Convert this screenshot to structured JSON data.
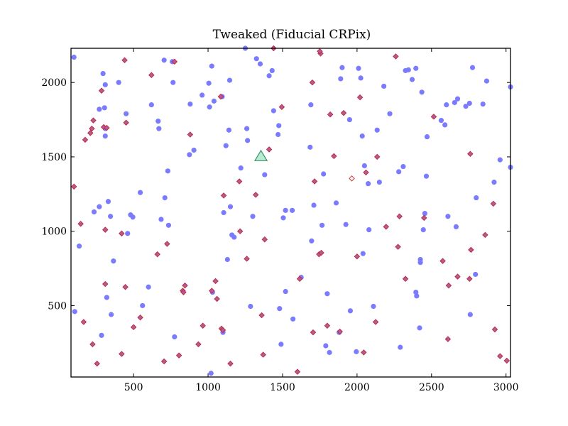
{
  "chart_data": {
    "type": "scatter",
    "title": "Tweaked (Fiducial CRPix)",
    "xlabel": "",
    "ylabel": "",
    "xlim": [
      80,
      3030
    ],
    "ylim": [
      20,
      2230
    ],
    "xticks": [
      500,
      1000,
      1500,
      2000,
      2500,
      3000
    ],
    "yticks": [
      500,
      1000,
      1500,
      2000
    ],
    "grid": false,
    "colors": {
      "circles": "#7b7bff",
      "diamond_fill": "#b35a9e",
      "diamond_edge": "#c0282f",
      "open_diamond_edge": "#d03a3a",
      "triangle_fill": "#b8ecd2",
      "triangle_edge": "#3f8f6a"
    },
    "series": [
      {
        "marker": "circle",
        "points": [
          [
            100,
            2170
          ],
          [
            135,
            900
          ],
          [
            105,
            460
          ],
          [
            235,
            1130
          ],
          [
            270,
            1165
          ],
          [
            285,
            300
          ],
          [
            295,
            2060
          ],
          [
            310,
            1985
          ],
          [
            305,
            1830
          ],
          [
            310,
            1640
          ],
          [
            320,
            555
          ],
          [
            330,
            1200
          ],
          [
            345,
            1100
          ],
          [
            350,
            440
          ],
          [
            365,
            800
          ],
          [
            400,
            2000
          ],
          [
            450,
            1790
          ],
          [
            460,
            985
          ],
          [
            480,
            1110
          ],
          [
            495,
            1095
          ],
          [
            545,
            1260
          ],
          [
            560,
            500
          ],
          [
            600,
            625
          ],
          [
            620,
            1850
          ],
          [
            665,
            1740
          ],
          [
            670,
            1690
          ],
          [
            685,
            1080
          ],
          [
            705,
            2150
          ],
          [
            710,
            1225
          ],
          [
            730,
            1405
          ],
          [
            735,
            1040
          ],
          [
            760,
            2140
          ],
          [
            765,
            2000
          ],
          [
            775,
            290
          ],
          [
            875,
            1515
          ],
          [
            880,
            1855
          ],
          [
            905,
            1545
          ],
          [
            960,
            1915
          ],
          [
            1005,
            1995
          ],
          [
            1010,
            1835
          ],
          [
            1020,
            45
          ],
          [
            1025,
            2110
          ],
          [
            1030,
            590
          ],
          [
            1040,
            1875
          ],
          [
            1095,
            1905
          ],
          [
            1100,
            320
          ],
          [
            1105,
            1125
          ],
          [
            1120,
            1575
          ],
          [
            1130,
            810
          ],
          [
            1140,
            1680
          ],
          [
            1145,
            2015
          ],
          [
            1150,
            1165
          ],
          [
            1160,
            975
          ],
          [
            1175,
            960
          ],
          [
            1220,
            1425
          ],
          [
            1250,
            2230
          ],
          [
            1260,
            1690
          ],
          [
            1265,
            1610
          ],
          [
            1285,
            495
          ],
          [
            1300,
            1100
          ],
          [
            1325,
            2160
          ],
          [
            1350,
            2125
          ],
          [
            1380,
            1380
          ],
          [
            1410,
            2045
          ],
          [
            1430,
            2080
          ],
          [
            1440,
            1810
          ],
          [
            1470,
            1650
          ],
          [
            1475,
            1710
          ],
          [
            1480,
            480
          ],
          [
            1490,
            240
          ],
          [
            1505,
            1090
          ],
          [
            1520,
            1140
          ],
          [
            1520,
            595
          ],
          [
            1565,
            1140
          ],
          [
            1570,
            410
          ],
          [
            1625,
            690
          ],
          [
            1685,
            1565
          ],
          [
            1690,
            1850
          ],
          [
            1695,
            935
          ],
          [
            1710,
            1175
          ],
          [
            1765,
            1040
          ],
          [
            1775,
            1385
          ],
          [
            1790,
            230
          ],
          [
            1800,
            580
          ],
          [
            1815,
            185
          ],
          [
            1860,
            1190
          ],
          [
            1880,
            320
          ],
          [
            1890,
            2025
          ],
          [
            1900,
            2100
          ],
          [
            1925,
            1045
          ],
          [
            1950,
            1750
          ],
          [
            1955,
            465
          ],
          [
            1995,
            190
          ],
          [
            2010,
            2095
          ],
          [
            2025,
            2030
          ],
          [
            2035,
            1640
          ],
          [
            2040,
            850
          ],
          [
            2050,
            1440
          ],
          [
            2075,
            1320
          ],
          [
            2080,
            1010
          ],
          [
            2110,
            495
          ],
          [
            2135,
            1680
          ],
          [
            2150,
            1330
          ],
          [
            2180,
            1975
          ],
          [
            2220,
            1790
          ],
          [
            2280,
            1400
          ],
          [
            2290,
            220
          ],
          [
            2300,
            15
          ],
          [
            2310,
            1435
          ],
          [
            2325,
            2080
          ],
          [
            2345,
            2085
          ],
          [
            2370,
            2020
          ],
          [
            2395,
            2095
          ],
          [
            2395,
            590
          ],
          [
            2400,
            565
          ],
          [
            2420,
            350
          ],
          [
            2425,
            810
          ],
          [
            2425,
            790
          ],
          [
            2435,
            1935
          ],
          [
            2445,
            1010
          ],
          [
            2455,
            1120
          ],
          [
            2465,
            1370
          ],
          [
            2470,
            1635
          ],
          [
            2565,
            1745
          ],
          [
            2590,
            1715
          ],
          [
            2600,
            1850
          ],
          [
            2610,
            1100
          ],
          [
            2655,
            1865
          ],
          [
            2665,
            1030
          ],
          [
            2675,
            1890
          ],
          [
            2730,
            1840
          ],
          [
            2755,
            1860
          ],
          [
            2760,
            440
          ],
          [
            2775,
            2100
          ],
          [
            2795,
            710
          ],
          [
            2800,
            1225
          ],
          [
            2845,
            1855
          ],
          [
            2870,
            2010
          ],
          [
            2920,
            1330
          ],
          [
            2960,
            1480
          ],
          [
            3030,
            1430
          ],
          [
            3030,
            1970
          ],
          [
            310,
            1690
          ],
          [
            1305,
            15
          ],
          [
            270,
            1820
          ]
        ]
      },
      {
        "marker": "diamond",
        "points": [
          [
            100,
            1300
          ],
          [
            145,
            1050
          ],
          [
            165,
            390
          ],
          [
            175,
            1615
          ],
          [
            210,
            1660
          ],
          [
            220,
            1690
          ],
          [
            225,
            240
          ],
          [
            230,
            1745
          ],
          [
            255,
            110
          ],
          [
            285,
            1945
          ],
          [
            300,
            1700
          ],
          [
            310,
            1010
          ],
          [
            310,
            645
          ],
          [
            320,
            1695
          ],
          [
            420,
            985
          ],
          [
            420,
            175
          ],
          [
            440,
            2150
          ],
          [
            445,
            625
          ],
          [
            450,
            1730
          ],
          [
            500,
            355
          ],
          [
            545,
            420
          ],
          [
            620,
            2050
          ],
          [
            660,
            845
          ],
          [
            705,
            125
          ],
          [
            725,
            915
          ],
          [
            775,
            2140
          ],
          [
            805,
            165
          ],
          [
            830,
            600
          ],
          [
            835,
            590
          ],
          [
            845,
            635
          ],
          [
            880,
            1650
          ],
          [
            935,
            240
          ],
          [
            965,
            365
          ],
          [
            1025,
            600
          ],
          [
            1050,
            665
          ],
          [
            1060,
            545
          ],
          [
            1085,
            1905
          ],
          [
            1090,
            345
          ],
          [
            1100,
            335
          ],
          [
            1105,
            1240
          ],
          [
            1150,
            110
          ],
          [
            1215,
            1000
          ],
          [
            1210,
            1335
          ],
          [
            1260,
            815
          ],
          [
            1320,
            1245
          ],
          [
            1360,
            435
          ],
          [
            1370,
            170
          ],
          [
            1380,
            945
          ],
          [
            1410,
            1550
          ],
          [
            1440,
            2230
          ],
          [
            1495,
            1835
          ],
          [
            1600,
            55
          ],
          [
            1615,
            680
          ],
          [
            1700,
            2000
          ],
          [
            1705,
            320
          ],
          [
            1715,
            1335
          ],
          [
            1745,
            845
          ],
          [
            1760,
            855
          ],
          [
            1755,
            2195
          ],
          [
            1800,
            365
          ],
          [
            1820,
            1785
          ],
          [
            1845,
            1505
          ],
          [
            1885,
            325
          ],
          [
            1910,
            1795
          ],
          [
            2000,
            830
          ],
          [
            2020,
            1900
          ],
          [
            2045,
            185
          ],
          [
            2060,
            1395
          ],
          [
            2125,
            390
          ],
          [
            2135,
            1500
          ],
          [
            2195,
            1030
          ],
          [
            2260,
            2175
          ],
          [
            2275,
            895
          ],
          [
            2285,
            1100
          ],
          [
            2325,
            680
          ],
          [
            2450,
            1090
          ],
          [
            2515,
            1770
          ],
          [
            2575,
            800
          ],
          [
            2610,
            275
          ],
          [
            2615,
            635
          ],
          [
            2675,
            695
          ],
          [
            2755,
            680
          ],
          [
            2760,
            1520
          ],
          [
            2765,
            875
          ],
          [
            2860,
            975
          ],
          [
            2915,
            1185
          ],
          [
            2925,
            340
          ],
          [
            2960,
            160
          ],
          [
            3005,
            130
          ],
          [
            1750,
            2210
          ]
        ]
      },
      {
        "marker": "open-diamond",
        "points": [
          [
            1965,
            1355
          ]
        ]
      },
      {
        "marker": "triangle",
        "points": [
          [
            1355,
            1500
          ]
        ]
      }
    ]
  }
}
